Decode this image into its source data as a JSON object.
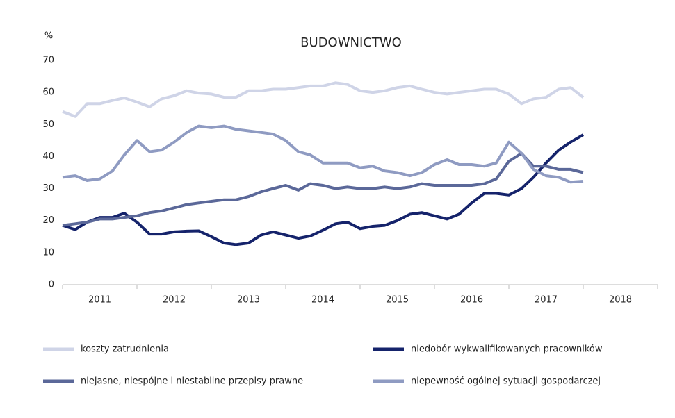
{
  "chart_data": {
    "type": "line",
    "title": "BUDOWNICTWO",
    "y_unit": "%",
    "x": [
      2011,
      2011.17,
      2011.33,
      2011.5,
      2011.67,
      2011.83,
      2012,
      2012.17,
      2012.33,
      2012.5,
      2012.67,
      2012.83,
      2013,
      2013.17,
      2013.33,
      2013.5,
      2013.67,
      2013.83,
      2014,
      2014.17,
      2014.33,
      2014.5,
      2014.67,
      2014.83,
      2015,
      2015.17,
      2015.33,
      2015.5,
      2015.67,
      2015.83,
      2016,
      2016.17,
      2016.33,
      2016.5,
      2016.67,
      2016.83,
      2017,
      2017.17,
      2017.33,
      2017.5,
      2017.67,
      2017.83,
      2018
    ],
    "xlim": [
      2011,
      2019
    ],
    "xticks": [
      2011,
      2012,
      2013,
      2014,
      2015,
      2016,
      2017,
      2018,
      2019
    ],
    "x_labels": [
      "2011",
      "2012",
      "2013",
      "2014",
      "2015",
      "2016",
      "2017",
      "2018"
    ],
    "ylim": [
      0,
      70
    ],
    "yticks": [
      0,
      10,
      20,
      30,
      40,
      50,
      60,
      70
    ],
    "grid": false,
    "series": [
      {
        "name": "koszty zatrudnienia",
        "color": "#cfd4e7",
        "values": [
          54,
          52.5,
          56.5,
          56.5,
          57.5,
          58.3,
          57,
          55.5,
          58,
          59,
          60.5,
          59.8,
          59.5,
          58.5,
          58.5,
          60.5,
          60.5,
          61,
          61,
          61.5,
          62,
          62,
          63,
          62.5,
          60.5,
          60,
          60.5,
          61.5,
          62,
          61,
          60,
          59.5,
          60,
          60.5,
          61,
          61,
          59.5,
          56.5,
          58,
          58.5,
          61,
          61.5,
          58.5
        ]
      },
      {
        "name": "niedobór wykwalifikowanych pracowników",
        "color": "#15236b",
        "values": [
          18.5,
          17.2,
          19.5,
          21,
          21,
          22.3,
          19.5,
          15.8,
          15.8,
          16.5,
          16.7,
          16.8,
          15,
          13,
          12.5,
          13,
          15.5,
          16.5,
          15.5,
          14.5,
          15.2,
          17,
          19,
          19.5,
          17.5,
          18.2,
          18.5,
          20,
          22,
          22.5,
          21.5,
          20.5,
          22,
          25.5,
          28.5,
          28.5,
          28,
          30,
          33.5,
          38,
          42,
          44.5,
          46.8
        ]
      },
      {
        "name": "niejasne, niespójne i niestabilne przepisy prawne",
        "color": "#5b6899",
        "values": [
          18.5,
          19,
          19.5,
          20.5,
          20.5,
          21,
          21.5,
          22.5,
          23,
          24,
          25,
          25.5,
          26,
          26.5,
          26.5,
          27.5,
          29,
          30,
          31,
          29.5,
          31.5,
          31,
          30,
          30.5,
          30,
          30,
          30.5,
          30,
          30.5,
          31.5,
          31,
          31,
          31,
          31,
          31.5,
          33,
          38.5,
          41,
          37,
          37,
          36,
          36,
          35
        ]
      },
      {
        "name": "niepewność ogólnej sytuacji gospodarczej",
        "color": "#8f9bc2",
        "values": [
          33.5,
          34,
          32.5,
          33,
          35.5,
          40.5,
          45,
          41.5,
          42,
          44.5,
          47.5,
          49.5,
          49,
          49.5,
          48.5,
          48,
          47.5,
          47,
          45,
          41.5,
          40.5,
          38,
          38,
          38,
          36.5,
          37,
          35.5,
          35,
          34,
          35,
          37.5,
          39,
          37.5,
          37.5,
          37,
          38,
          44.5,
          41,
          36,
          34,
          33.5,
          32,
          32.3
        ]
      }
    ]
  }
}
